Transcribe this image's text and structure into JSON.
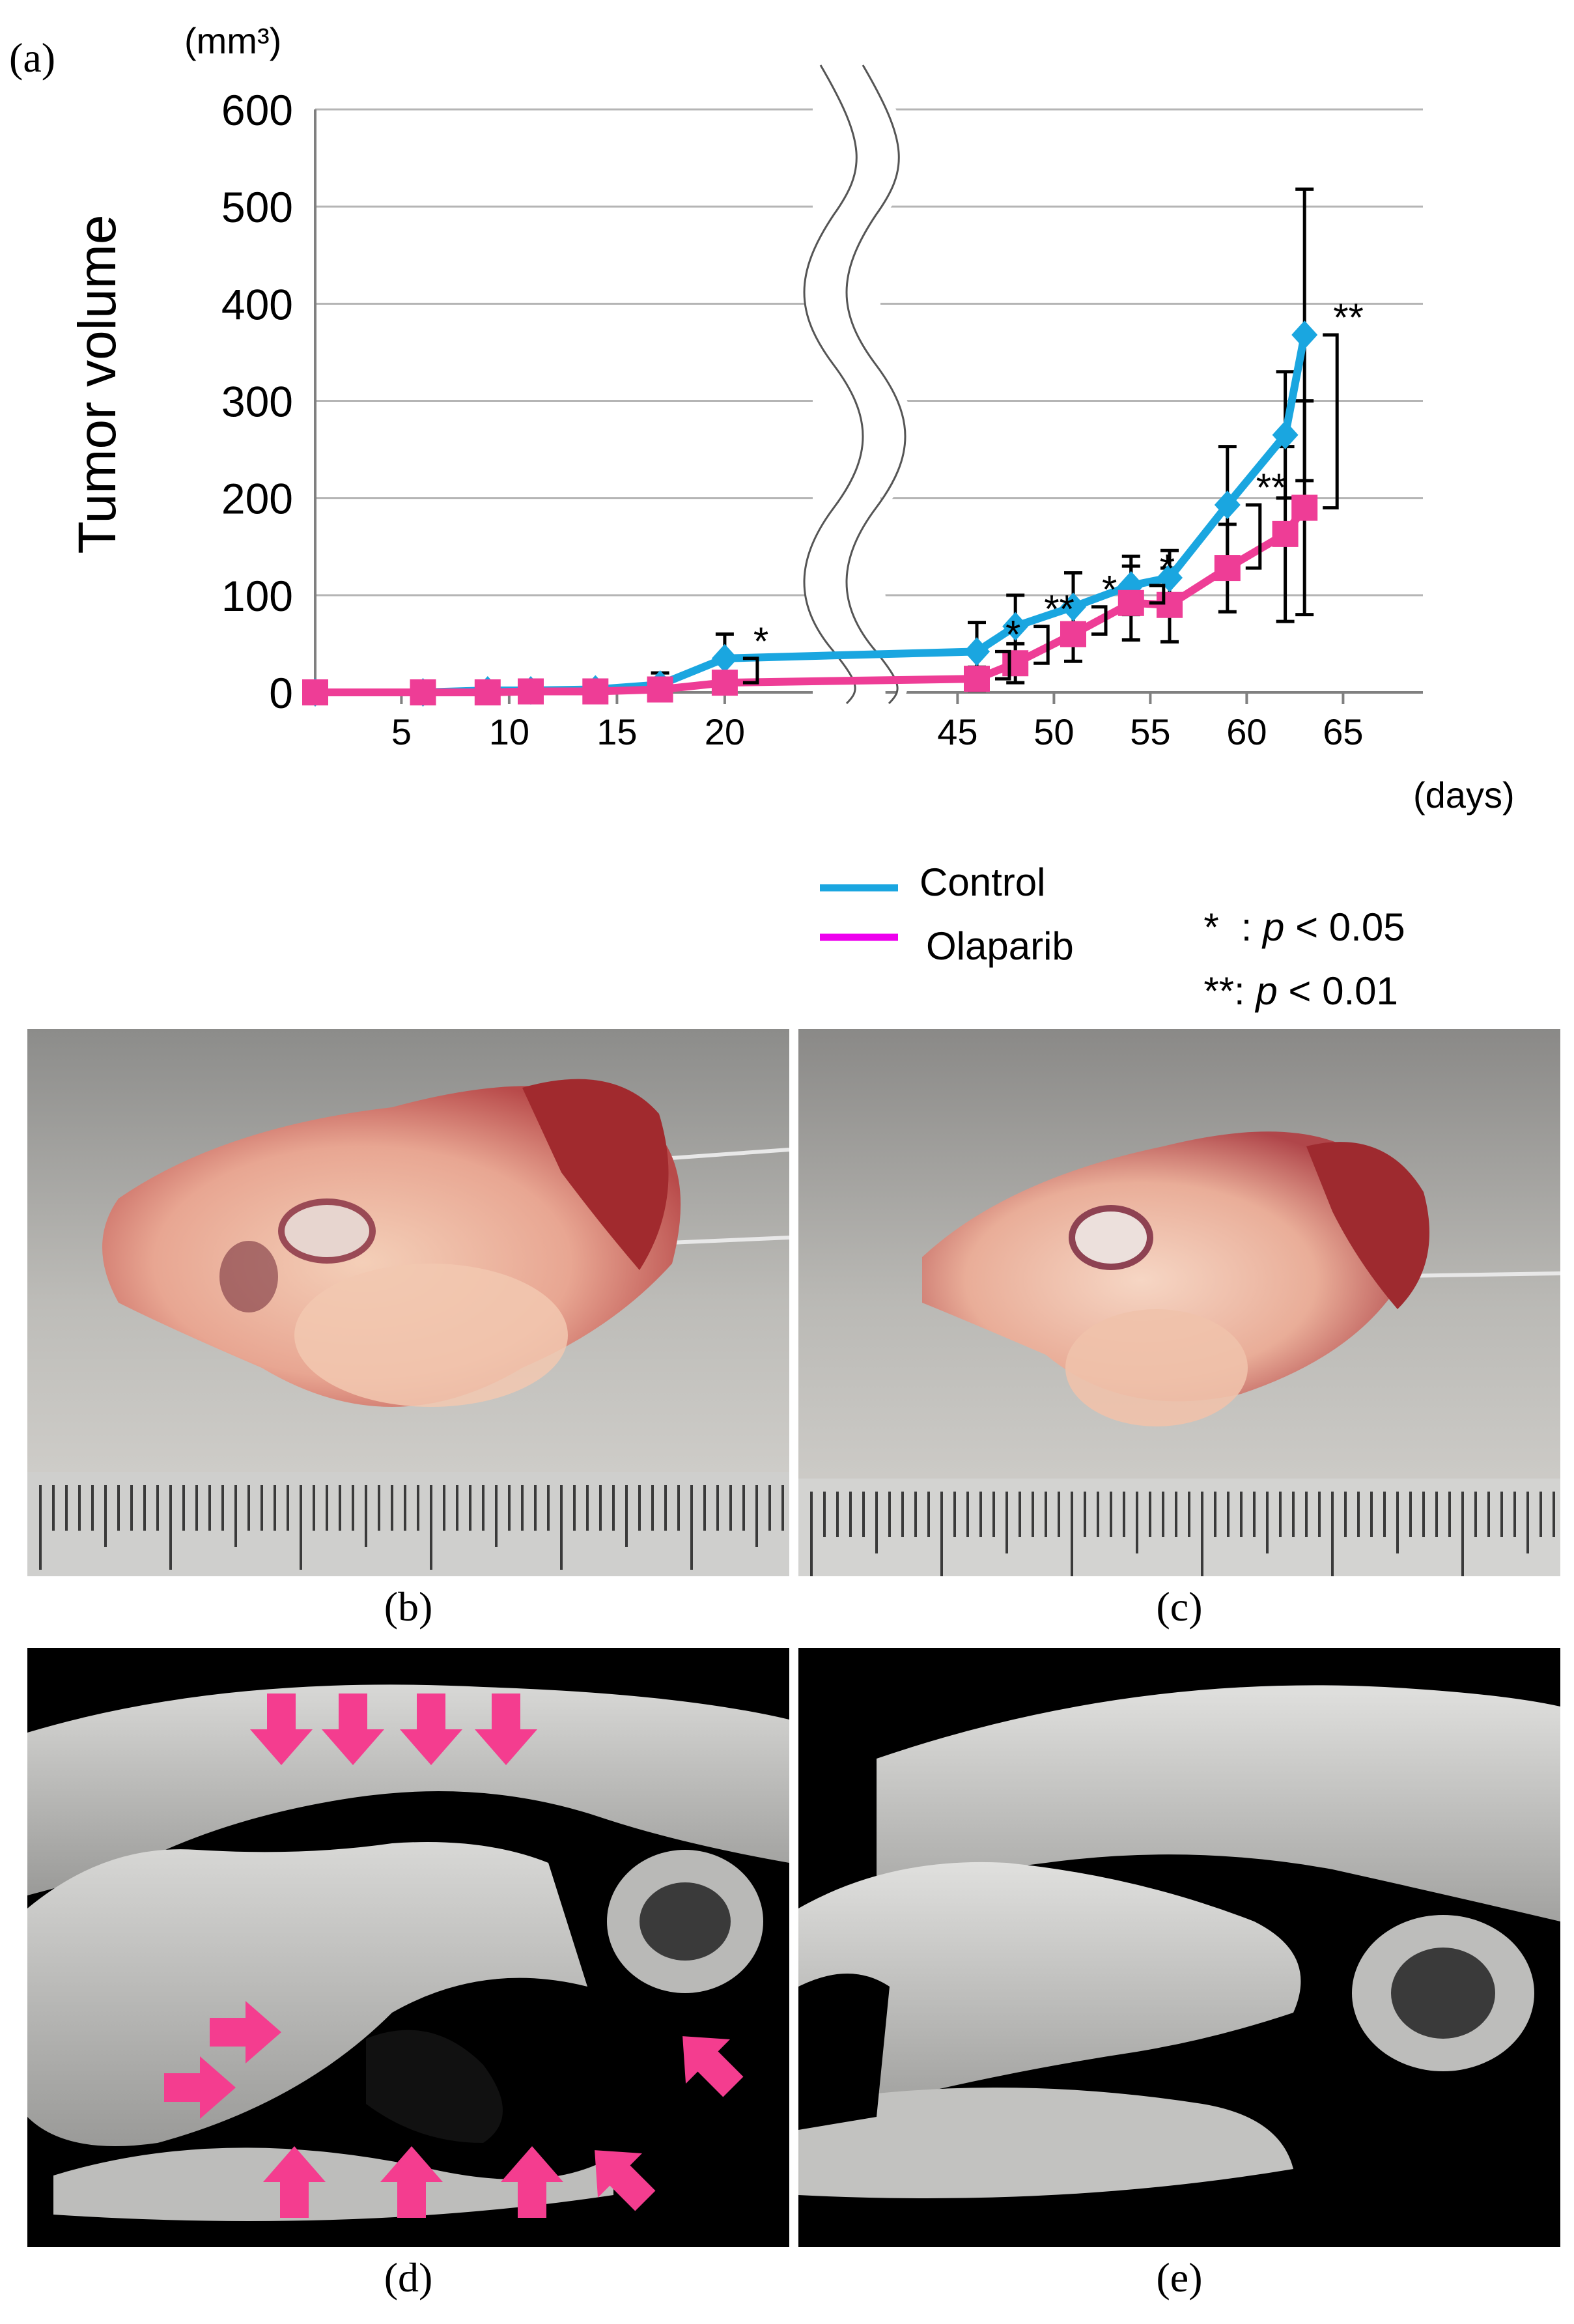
{
  "panels": {
    "a": "(a)",
    "b": "(b)",
    "c": "(c)",
    "d": "(d)",
    "e": "(e)"
  },
  "chart_data": {
    "type": "line",
    "title": "",
    "ylabel": "Tumor volume",
    "yunit": "(mm³)",
    "xunit": "(days)",
    "ylim": [
      0,
      600
    ],
    "yticks": [
      0,
      100,
      200,
      300,
      400,
      500,
      600
    ],
    "xticks_left": [
      5,
      10,
      15,
      20
    ],
    "xticks_right": [
      45,
      50,
      55,
      60,
      65
    ],
    "axis_break": "between 20 and 45 days",
    "series": [
      {
        "name": "Control",
        "color": "#1aa6e0",
        "marker": "diamond",
        "x": [
          1,
          6,
          9,
          11,
          14,
          17,
          20,
          46,
          48,
          51,
          54,
          56,
          59,
          62,
          63
        ],
        "y": [
          0,
          0,
          2,
          2,
          3,
          8,
          35,
          42,
          68,
          88,
          110,
          118,
          193,
          265,
          368
        ],
        "err": [
          0,
          0,
          0,
          0,
          0,
          12,
          25,
          30,
          32,
          35,
          30,
          28,
          60,
          65,
          150
        ]
      },
      {
        "name": "Olaparib",
        "color": "#ee3d96",
        "marker": "square",
        "x": [
          1,
          6,
          9,
          11,
          14,
          17,
          20,
          46,
          48,
          51,
          54,
          56,
          59,
          62,
          63
        ],
        "y": [
          0,
          0,
          0,
          1,
          1,
          3,
          10,
          14,
          30,
          60,
          92,
          90,
          128,
          163,
          190
        ],
        "err": [
          0,
          0,
          0,
          0,
          0,
          5,
          10,
          12,
          20,
          28,
          38,
          38,
          45,
          90,
          110
        ]
      }
    ],
    "significance": [
      {
        "x": 20,
        "mark": "*"
      },
      {
        "x": 46,
        "mark": "*"
      },
      {
        "x": 48,
        "mark": "**"
      },
      {
        "x": 51,
        "mark": "*"
      },
      {
        "x": 54,
        "mark": "*"
      },
      {
        "x": 59,
        "mark": "**"
      },
      {
        "x": 63,
        "mark": "**"
      }
    ],
    "legend": {
      "control": "Control",
      "olaparib": "Olaparib",
      "sig1_mark": "*",
      "sig1_text": ": ",
      "sig2_mark": "**",
      "sig2_text": ": ",
      "p_symbol": "p",
      "p1": " < 0.05",
      "p2": " < 0.01"
    }
  }
}
